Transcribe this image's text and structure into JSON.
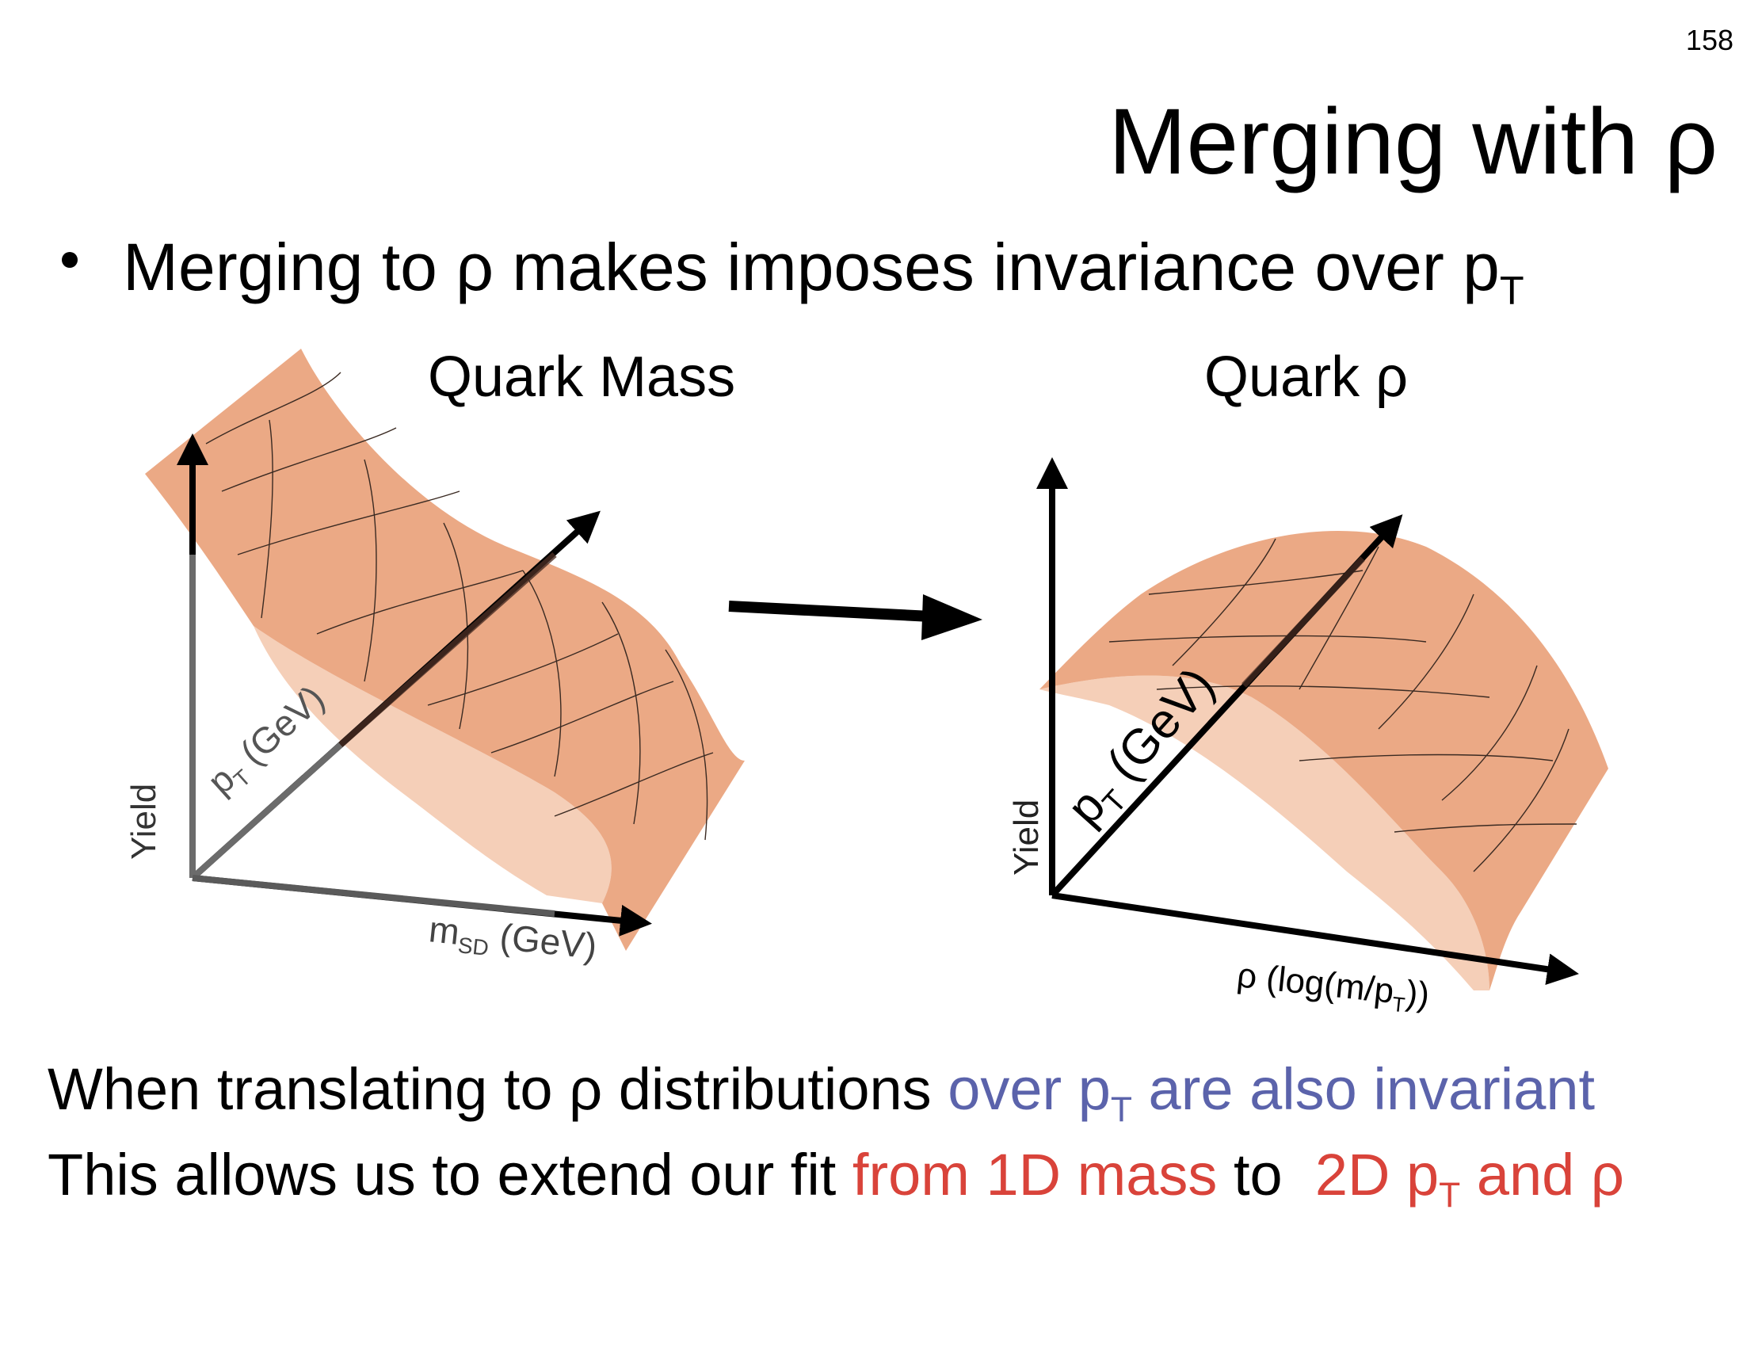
{
  "page": {
    "number": "158",
    "title": "Merging with ρ"
  },
  "bullet": {
    "text_main": "Merging to ρ makes imposes invariance over p",
    "text_sub": "T"
  },
  "left_panel": {
    "heading": "Quark Mass",
    "y_axis_label": "Yield",
    "pt_axis_label_main": "p",
    "pt_axis_label_sub": "T",
    "pt_axis_label_unit": " (GeV)",
    "x_axis_label_main": "m",
    "x_axis_label_sub": "SD",
    "x_axis_label_unit": " (GeV)"
  },
  "right_panel": {
    "heading": "Quark ρ",
    "y_axis_label": "Yield",
    "pt_axis_label_main": "p",
    "pt_axis_label_sub": "T",
    "pt_axis_label_unit": " (GeV)",
    "x_axis_label_pre": "ρ (log(m/p",
    "x_axis_label_sub": "T",
    "x_axis_label_post": "))"
  },
  "summary": {
    "line1_black": "When translating to ρ distributions ",
    "line1_blue_pre": "over p",
    "line1_blue_sub": "T",
    "line1_blue_post": " are also invariant",
    "line2_black_pre": "This allows us to extend our fit ",
    "line2_red_1": "from 1D mass",
    "line2_black_mid": " to  ",
    "line2_red_2_pre": "2D p",
    "line2_red_2_sub": "T",
    "line2_red_2_post": " and ρ"
  },
  "colors": {
    "surface_front": "#eba985",
    "surface_back": "#f5cfb8",
    "axis_dark": "#000000",
    "axis_gray": "#555555",
    "highlight_blue": "#5b63ab",
    "highlight_red": "#d9433a"
  }
}
